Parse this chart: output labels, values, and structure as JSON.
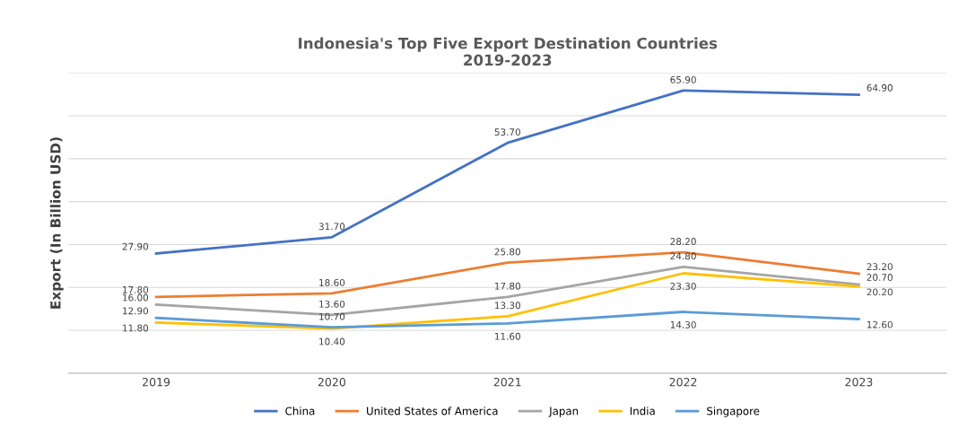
{
  "chart_data": {
    "type": "line",
    "title": "Indonesia's Top Five Export Destination Countries\n2019-2023",
    "ylabel": "Export (In Billion USD)",
    "categories": [
      "2019",
      "2020",
      "2021",
      "2022",
      "2023"
    ],
    "series": [
      {
        "name": "China",
        "color": "#4472c4",
        "values": [
          27.9,
          31.7,
          53.7,
          65.9,
          64.9
        ],
        "value_labels": [
          "27.90",
          "31.70",
          "53.70",
          "65.90",
          "64.90"
        ]
      },
      {
        "name": "United States of America",
        "color": "#ed7d31",
        "values": [
          17.8,
          18.6,
          25.8,
          28.2,
          23.2
        ],
        "value_labels": [
          "17.80",
          "18.60",
          "25.80",
          "28.20",
          "23.20"
        ]
      },
      {
        "name": "Japan",
        "color": "#a5a5a5",
        "values": [
          16.0,
          13.6,
          17.8,
          24.8,
          20.7
        ],
        "value_labels": [
          "16.00",
          "13.60",
          "17.80",
          "24.80",
          "20.70"
        ]
      },
      {
        "name": "India",
        "color": "#ffc000",
        "values": [
          11.8,
          10.4,
          13.3,
          23.3,
          20.2
        ],
        "value_labels": [
          "11.80",
          "10.40",
          "13.30",
          "23.30",
          "20.20"
        ]
      },
      {
        "name": "Singapore",
        "color": "#5b9bd5",
        "values": [
          12.9,
          10.7,
          11.6,
          14.3,
          12.6
        ],
        "value_labels": [
          "12.90",
          "10.70",
          "11.60",
          "14.30",
          "12.60"
        ]
      }
    ],
    "ylim": [
      0,
      70
    ],
    "yticks": [
      {
        "value": 0,
        "label": null
      },
      {
        "value": 10,
        "label": null
      },
      {
        "value": 20,
        "label": null
      },
      {
        "value": 30,
        "label": null
      },
      {
        "value": 40,
        "label": null
      },
      {
        "value": 50,
        "label": null
      },
      {
        "value": 60,
        "label": null
      },
      {
        "value": 70,
        "label": null
      }
    ],
    "tick_labels": "x",
    "grid": "y",
    "legend": "bottom",
    "marker": "none",
    "line_style": "solid"
  }
}
